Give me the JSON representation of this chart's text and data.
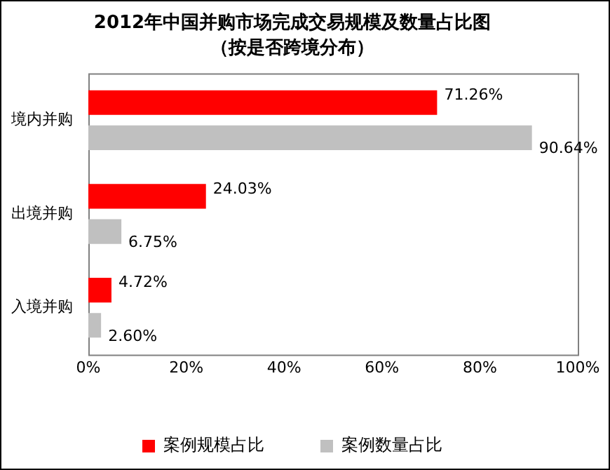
{
  "chart_data": {
    "type": "bar",
    "orientation": "horizontal",
    "title": "2012年中国并购市场完成交易规模及数量占比图",
    "subtitle": "（按是否跨境分布）",
    "categories": [
      "境内并购",
      "出境并购",
      "入境并购"
    ],
    "series": [
      {
        "name": "案例规模占比",
        "color": "#ff0000",
        "values": [
          71.26,
          24.03,
          4.72
        ],
        "value_labels": [
          "71.26%",
          "24.03%",
          "4.72%"
        ]
      },
      {
        "name": "案例数量占比",
        "color": "#c0c0c0",
        "values": [
          90.64,
          6.75,
          2.6
        ],
        "value_labels": [
          "90.64%",
          "6.75%",
          "2.60%"
        ]
      }
    ],
    "xlim": [
      0,
      100
    ],
    "xticks": [
      {
        "value": 0,
        "label": "0%"
      },
      {
        "value": 20,
        "label": "20%"
      },
      {
        "value": 40,
        "label": "40%"
      },
      {
        "value": 60,
        "label": "60%"
      },
      {
        "value": 80,
        "label": "80%"
      },
      {
        "value": 100,
        "label": "100%"
      }
    ],
    "grid": false,
    "legend": "bottom"
  }
}
